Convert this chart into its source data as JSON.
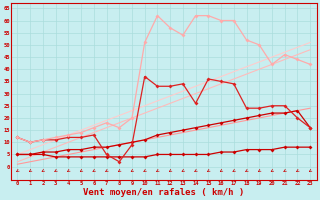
{
  "x": [
    0,
    1,
    2,
    3,
    4,
    5,
    6,
    7,
    8,
    9,
    10,
    11,
    12,
    13,
    14,
    15,
    16,
    17,
    18,
    19,
    20,
    21,
    22,
    23
  ],
  "background_color": "#c8eef0",
  "grid_color": "#aadddd",
  "xlabel": "Vent moyen/en rafales ( km/h )",
  "xlabel_color": "#cc0000",
  "xlabel_fontsize": 6.5,
  "yticks": [
    0,
    5,
    10,
    15,
    20,
    25,
    30,
    35,
    40,
    45,
    50,
    55,
    60,
    65
  ],
  "xticks": [
    0,
    1,
    2,
    3,
    4,
    5,
    6,
    7,
    8,
    9,
    10,
    11,
    12,
    13,
    14,
    15,
    16,
    17,
    18,
    19,
    20,
    21,
    22,
    23
  ],
  "line_straight1": {
    "y": [
      1,
      2,
      3,
      4,
      5,
      6,
      7,
      8,
      9,
      10,
      11,
      12,
      13,
      14,
      15,
      16,
      17,
      18,
      19,
      20,
      21,
      22,
      23,
      24
    ],
    "color": "#ff9999",
    "lw": 0.8
  },
  "line_straight2": {
    "y": [
      2,
      4,
      6,
      8,
      10,
      12,
      14,
      16,
      18,
      20,
      22,
      24,
      26,
      28,
      30,
      32,
      34,
      36,
      38,
      40,
      42,
      44,
      46,
      48
    ],
    "color": "#ffbbbb",
    "lw": 0.8
  },
  "line_straight3": {
    "y": [
      5,
      7,
      9,
      11,
      13,
      15,
      17,
      19,
      21,
      23,
      25,
      27,
      29,
      31,
      33,
      35,
      37,
      39,
      41,
      43,
      45,
      47,
      49,
      51
    ],
    "color": "#ffcccc",
    "lw": 0.8
  },
  "line_vent_min": {
    "y": [
      5,
      5,
      5,
      4,
      4,
      4,
      4,
      4,
      4,
      4,
      4,
      5,
      5,
      5,
      5,
      5,
      6,
      6,
      7,
      7,
      7,
      8,
      8,
      8
    ],
    "color": "#cc0000",
    "lw": 0.9,
    "ms": 2.0
  },
  "line_vent_moy": {
    "y": [
      5,
      5,
      6,
      6,
      7,
      7,
      8,
      8,
      9,
      10,
      11,
      13,
      14,
      15,
      16,
      17,
      18,
      19,
      20,
      21,
      22,
      22,
      23,
      16
    ],
    "color": "#cc0000",
    "lw": 0.9,
    "ms": 2.0
  },
  "line_rafales_moy": {
    "y": [
      12,
      10,
      11,
      11,
      12,
      12,
      13,
      5,
      2,
      9,
      37,
      33,
      33,
      34,
      26,
      36,
      35,
      34,
      24,
      24,
      25,
      25,
      20,
      16
    ],
    "color": "#dd2222",
    "lw": 0.9,
    "ms": 2.0
  },
  "line_rafales_max": {
    "y": [
      12,
      10,
      11,
      12,
      13,
      14,
      16,
      18,
      16,
      20,
      51,
      62,
      57,
      54,
      62,
      62,
      60,
      60,
      52,
      50,
      42,
      46,
      44,
      42
    ],
    "color": "#ffaaaa",
    "lw": 0.9,
    "ms": 2.0
  },
  "wind_color": "#cc0000",
  "axis_color": "#cc0000"
}
